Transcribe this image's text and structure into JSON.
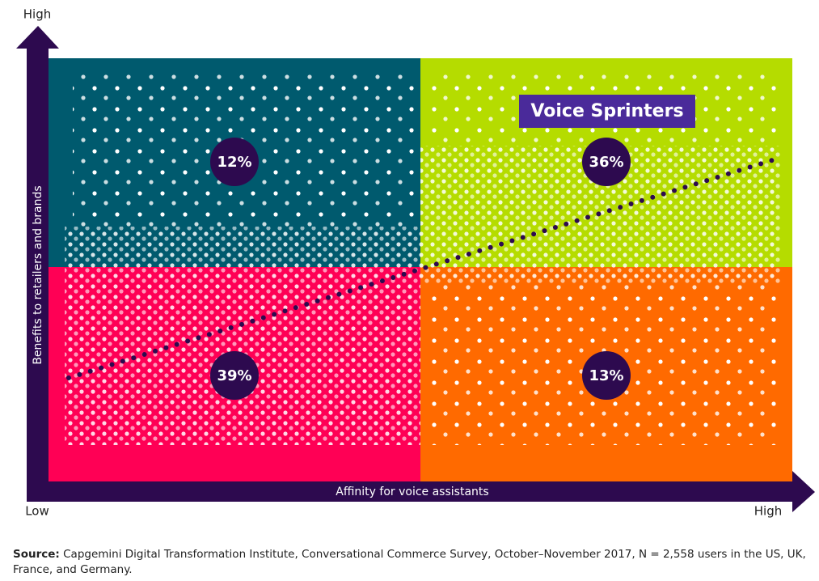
{
  "axes": {
    "y_label": "Benefits to retailers and brands",
    "x_label": "Affinity for voice assistants",
    "y_high": "High",
    "x_low": "Low",
    "x_high": "High"
  },
  "quadrants": [
    {
      "label": "12%"
    },
    {
      "label": "36%"
    },
    {
      "label": "39%"
    },
    {
      "label": "13%"
    }
  ],
  "highlight": "Voice Sprinters",
  "source": {
    "label": "Source:",
    "text": "Capgemini Digital Transformation Institute, Conversational Commerce Survey, October–November 2017, N = 2,558 users in the US, UK, France, and Germany."
  }
}
